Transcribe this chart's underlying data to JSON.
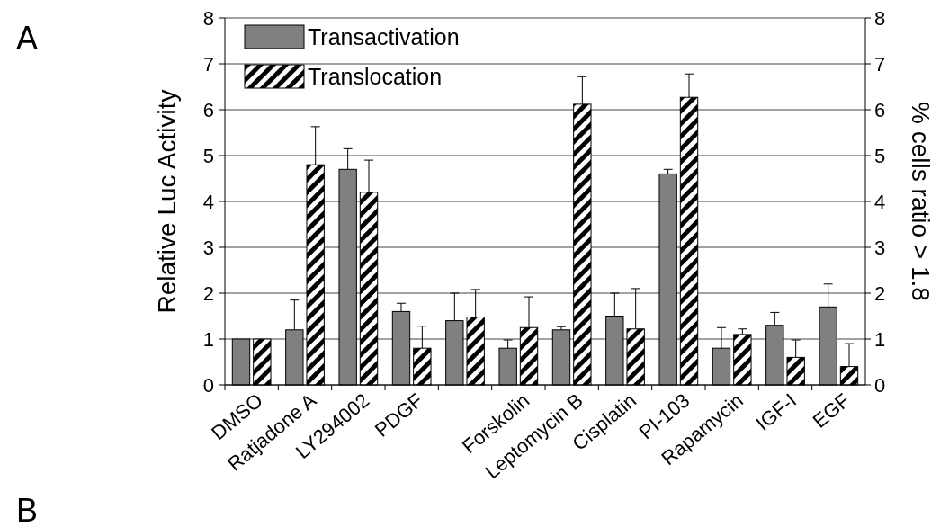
{
  "chart_data": {
    "type": "bar",
    "categories": [
      "DMSO",
      "Ratjadone A",
      "LY294002",
      "PDGF",
      null,
      "Forskolin",
      "Leptomycin B",
      "Cisplatin",
      "PI-103",
      "Rapamycin",
      "IGF-I",
      "EGF"
    ],
    "series": [
      {
        "name": "Transactivation",
        "color": "#808080",
        "values": [
          1.0,
          1.2,
          4.7,
          1.6,
          1.4,
          0.8,
          1.2,
          1.5,
          4.6,
          0.8,
          1.3,
          1.7
        ],
        "errors": [
          null,
          [
            1.2,
            1.85
          ],
          [
            4.7,
            5.15
          ],
          [
            1.6,
            1.78
          ],
          [
            1.4,
            2.0
          ],
          [
            0.8,
            0.98
          ],
          [
            1.2,
            1.27
          ],
          [
            1.5,
            2.0
          ],
          [
            4.6,
            4.7
          ],
          [
            0.8,
            1.25
          ],
          [
            1.3,
            1.58
          ],
          [
            1.7,
            2.2
          ]
        ]
      },
      {
        "name": "Translocation",
        "color": "#000000",
        "axis": "y2",
        "values": [
          1.0,
          4.8,
          4.2,
          0.8,
          1.48,
          1.25,
          6.12,
          1.22,
          6.27,
          1.1,
          0.6,
          0.4
        ],
        "errors": [
          null,
          [
            4.8,
            5.63
          ],
          [
            4.2,
            4.9
          ],
          [
            0.8,
            1.28
          ],
          [
            1.48,
            2.08
          ],
          [
            1.25,
            1.92
          ],
          [
            6.12,
            6.72
          ],
          [
            1.22,
            2.1
          ],
          [
            6.27,
            6.78
          ],
          [
            1.1,
            1.22
          ],
          [
            0.6,
            0.98
          ],
          [
            0.4,
            0.9
          ]
        ]
      }
    ],
    "ylabel": "Relative Luc Activity",
    "y2label": "% cells ratio > 1.8",
    "ylim": [
      0,
      8
    ],
    "yticks": [
      0,
      1,
      2,
      3,
      4,
      5,
      6,
      7,
      8
    ],
    "y2lim": [
      0,
      8
    ],
    "y2ticks": [
      0,
      1,
      2,
      3,
      4,
      5,
      6,
      7,
      8
    ],
    "grid": "y",
    "legend": "top left",
    "annotations": [
      "A",
      "B"
    ]
  }
}
